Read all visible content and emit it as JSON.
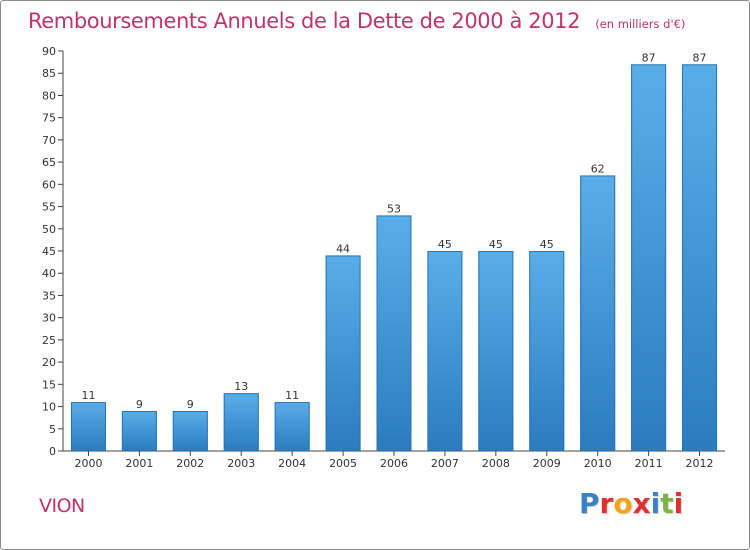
{
  "header": {
    "title": "Remboursements Annuels de la Dette de 2000 à 2012",
    "subtitle": "(en milliers d'€)"
  },
  "footer": {
    "place": "VION",
    "logo_text": "Proxiti",
    "logo_colors": [
      "#3b82c4",
      "#e0302f",
      "#f3a21b",
      "#e0302f",
      "#3b82c4",
      "#7cb342",
      "#e0302f"
    ]
  },
  "colors": {
    "bar_light": "#5aaee8",
    "bar_dark": "#2a7cbf",
    "title": "#c0336b"
  },
  "chart_data": {
    "type": "bar",
    "title": "Remboursements Annuels de la Dette de 2000 à 2012",
    "categories": [
      "2000",
      "2001",
      "2002",
      "2003",
      "2004",
      "2005",
      "2006",
      "2007",
      "2008",
      "2009",
      "2010",
      "2011",
      "2012"
    ],
    "values": [
      11,
      9,
      9,
      13,
      11,
      44,
      53,
      45,
      45,
      45,
      62,
      87,
      87
    ],
    "ylim": [
      0,
      90
    ],
    "yticks": [
      0,
      5,
      10,
      15,
      20,
      25,
      30,
      35,
      40,
      45,
      50,
      55,
      60,
      65,
      70,
      75,
      80,
      85,
      90
    ],
    "grid": false
  }
}
